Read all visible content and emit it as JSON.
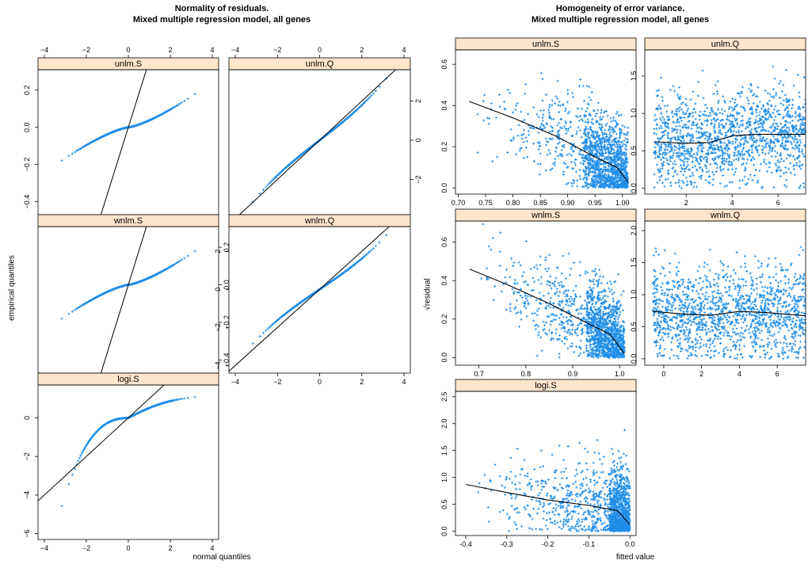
{
  "left_figure": {
    "title_line1": "Normality of residuals.",
    "title_line2": "Mixed multiple regression model, all genes",
    "xlabel": "normal quantiles",
    "ylabel": "empirical quantiles"
  },
  "right_figure": {
    "title_line1": "Homogeneity of error variance.",
    "title_line2": "Mixed multiple regression model, all genes",
    "xlabel": "fitted value",
    "ylabel": "√residual"
  },
  "colors": {
    "points": "#1f8de8",
    "strip": "#ffe5cc",
    "frame": "#000000"
  },
  "chart_data": [
    {
      "type": "scatter",
      "title": "Normality of residuals. Mixed multiple regression model, all genes",
      "xlabel": "normal quantiles",
      "ylabel": "empirical quantiles",
      "panels": [
        {
          "name": "unlm.S",
          "xlim": [
            -4.3,
            4.3
          ],
          "ylim": [
            -0.47,
            0.31
          ],
          "xticks": [
            -4,
            -2,
            0,
            2,
            4
          ],
          "yticks": [
            -0.4,
            -0.2,
            0.0,
            0.2
          ],
          "ytick_labels": [
            "-0.4",
            "-0.2",
            "0.0",
            "0.2"
          ],
          "curve": "sshape",
          "qq": {
            "A": 0.21,
            "p": 1.4,
            "B": 0.02
          },
          "line": {
            "slope": 0.36,
            "intercept": 0.0
          }
        },
        {
          "name": "unlm.Q",
          "xlim": [
            -4.3,
            4.3
          ],
          "ylim": [
            -3.8,
            3.6
          ],
          "xticks": [
            -4,
            -2,
            0,
            2,
            4
          ],
          "yticks": [
            -2,
            0,
            2
          ],
          "ytick_labels": [
            "-2",
            "0",
            "2"
          ],
          "curve": "linear",
          "qq": {
            "s": 0.83
          },
          "line": {
            "slope": 1.0,
            "intercept": 0.0
          }
        },
        {
          "name": "wnlm.S",
          "xlim": [
            -4.3,
            4.3
          ],
          "ylim": [
            -0.47,
            0.31
          ],
          "xticks": [
            -4,
            -2,
            0,
            2,
            4
          ],
          "yticks": [
            -0.4,
            -0.2,
            0.0,
            0.2
          ],
          "ytick_labels": [
            "-0.4",
            "-0.2",
            "0.0",
            "0.2"
          ],
          "curve": "sshape",
          "qq": {
            "A": 0.21,
            "p": 1.4,
            "B": 0.02
          },
          "line": {
            "slope": 0.36,
            "intercept": 0.0
          }
        },
        {
          "name": "wnlm.Q",
          "xlim": [
            -4.3,
            4.3
          ],
          "ylim": [
            -4.4,
            3.3
          ],
          "xticks": [
            -4,
            -2,
            0,
            2,
            4
          ],
          "yticks": [
            -4,
            -2,
            0,
            2
          ],
          "ytick_labels": [
            "-4",
            "-2",
            "0",
            "2"
          ],
          "curve": "linear",
          "qq": {
            "s": 0.75
          },
          "line": {
            "slope": 1.0,
            "intercept": 0.0
          }
        },
        {
          "name": "logi.S",
          "xlim": [
            -4.3,
            4.3
          ],
          "ylim": [
            -6.3,
            1.7
          ],
          "xticks": [
            -4,
            -2,
            0,
            2,
            4
          ],
          "yticks": [
            -6,
            -4,
            -2,
            0
          ],
          "ytick_labels": [
            "-6",
            "-4",
            "-2",
            "0"
          ],
          "curve": "skewed",
          "line": {
            "slope": 1.0,
            "intercept": 0.0
          }
        }
      ]
    },
    {
      "type": "scatter",
      "title": "Homogeneity of error variance. Mixed multiple regression model, all genes",
      "xlabel": "fitted value",
      "ylabel": "√residual",
      "panels": [
        {
          "name": "unlm.S",
          "xlim": [
            0.695,
            1.025
          ],
          "ylim": [
            -0.03,
            0.67
          ],
          "xticks": [
            0.7,
            0.75,
            0.8,
            0.85,
            0.9,
            0.95,
            1.0
          ],
          "xtick_labels": [
            "0.70",
            "0.75",
            "0.80",
            "0.85",
            "0.90",
            "0.95",
            "1.00"
          ],
          "yticks": [
            0.0,
            0.2,
            0.4,
            0.6
          ],
          "ytick_labels": [
            "0.0",
            "0.2",
            "0.4",
            "0.6"
          ],
          "points": {
            "xmin": 0.72,
            "xmax": 1.01,
            "skew": 0.4,
            "dense_from": 0.93
          },
          "smooth": [
            [
              0.72,
              0.42
            ],
            [
              0.8,
              0.34
            ],
            [
              0.88,
              0.25
            ],
            [
              0.95,
              0.15
            ],
            [
              0.99,
              0.1
            ],
            [
              1.01,
              0.03
            ]
          ]
        },
        {
          "name": "unlm.Q",
          "xlim": [
            0.2,
            7.2
          ],
          "ylim": [
            -0.08,
            1.85
          ],
          "xticks": [
            2,
            4,
            6
          ],
          "xtick_labels": [
            "2",
            "4",
            "6"
          ],
          "yticks": [
            0.0,
            0.5,
            1.0,
            1.5
          ],
          "ytick_labels": [
            "0.0",
            "0.5",
            "1.0",
            "1.5"
          ],
          "points": {
            "xmin": 0.6,
            "xmax": 7.2,
            "skew": 1.0
          },
          "smooth": [
            [
              0.6,
              0.62
            ],
            [
              2.0,
              0.6
            ],
            [
              3.0,
              0.61
            ],
            [
              4.0,
              0.7
            ],
            [
              5.0,
              0.72
            ],
            [
              7.2,
              0.72
            ]
          ]
        },
        {
          "name": "wnlm.S",
          "xlim": [
            0.65,
            1.035
          ],
          "ylim": [
            -0.04,
            0.71
          ],
          "xticks": [
            0.7,
            0.8,
            0.9,
            1.0
          ],
          "xtick_labels": [
            "0.7",
            "0.8",
            "0.9",
            "1.0"
          ],
          "yticks": [
            0.0,
            0.2,
            0.4,
            0.6
          ],
          "ytick_labels": [
            "0.0",
            "0.2",
            "0.4",
            "0.6"
          ],
          "points": {
            "xmin": 0.68,
            "xmax": 1.01,
            "skew": 0.45,
            "dense_from": 0.93
          },
          "smooth": [
            [
              0.68,
              0.46
            ],
            [
              0.76,
              0.38
            ],
            [
              0.85,
              0.28
            ],
            [
              0.93,
              0.18
            ],
            [
              0.98,
              0.12
            ],
            [
              1.01,
              0.02
            ]
          ]
        },
        {
          "name": "wnlm.Q",
          "xlim": [
            -1.0,
            7.5
          ],
          "ylim": [
            -0.1,
            2.15
          ],
          "xticks": [
            0,
            2,
            4,
            6
          ],
          "xtick_labels": [
            "0",
            "2",
            "4",
            "6"
          ],
          "yticks": [
            0.0,
            0.5,
            1.0,
            1.5,
            2.0
          ],
          "ytick_labels": [
            "0.0",
            "0.5",
            "1.0",
            "1.5",
            "2.0"
          ],
          "points": {
            "xmin": -0.6,
            "xmax": 7.5,
            "skew": 1.0
          },
          "smooth": [
            [
              -0.6,
              0.74
            ],
            [
              1.0,
              0.7
            ],
            [
              2.5,
              0.68
            ],
            [
              4.0,
              0.74
            ],
            [
              5.5,
              0.72
            ],
            [
              7.5,
              0.67
            ]
          ]
        },
        {
          "name": "logi.S",
          "xlim": [
            -0.425,
            0.015
          ],
          "ylim": [
            -0.08,
            2.6
          ],
          "xticks": [
            -0.4,
            -0.3,
            -0.2,
            -0.1,
            0.0
          ],
          "xtick_labels": [
            "-0.4",
            "-0.3",
            "-0.2",
            "-0.1",
            "0.0"
          ],
          "yticks": [
            0.0,
            0.5,
            1.0,
            1.5,
            2.0,
            2.5
          ],
          "ytick_labels": [
            "0.0",
            "0.5",
            "1.0",
            "1.5",
            "2.0",
            "2.5"
          ],
          "points": {
            "xmin": -0.41,
            "xmax": 0.0,
            "skew": 2.5,
            "dense_from": -0.05
          },
          "smooth": [
            [
              -0.4,
              0.87
            ],
            [
              -0.3,
              0.72
            ],
            [
              -0.2,
              0.58
            ],
            [
              -0.1,
              0.48
            ],
            [
              -0.03,
              0.38
            ],
            [
              0.0,
              0.12
            ]
          ]
        }
      ]
    }
  ]
}
